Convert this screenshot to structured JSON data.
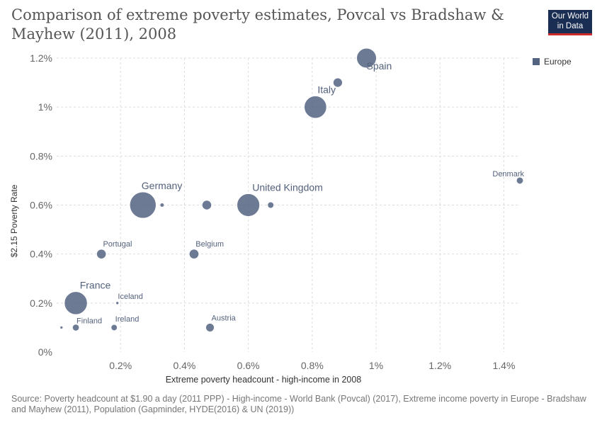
{
  "header": {
    "title": "Comparison of extreme poverty estimates, Povcal vs Bradshaw & Mayhew (2011), 2008",
    "logo_line1": "Our World",
    "logo_line2": "in Data"
  },
  "footer": {
    "source": "Source: Poverty headcount at $1.90 a day (2011 PPP) - High-income - World Bank (Povcal) (2017), Extreme income poverty in Europe - Bradshaw and Mayhew (2011), Population (Gapminder, HYDE(2016) & UN (2019))"
  },
  "colors": {
    "europe": "#536380",
    "grid": "#dddddd",
    "axis_text": "#666666"
  },
  "chart_data": {
    "type": "scatter",
    "xlabel": "Extreme poverty headcount - high-income in 2008",
    "ylabel": "$2.15 Poverty Rate",
    "xlim": [
      0,
      1.45
    ],
    "ylim": [
      0,
      1.2
    ],
    "x_ticks": [
      0.2,
      0.4,
      0.6,
      0.8,
      1.0,
      1.2,
      1.4
    ],
    "x_tick_labels": [
      "0.2%",
      "0.4%",
      "0.6%",
      "0.8%",
      "1%",
      "1.2%",
      "1.4%"
    ],
    "y_ticks": [
      0,
      0.2,
      0.4,
      0.6,
      0.8,
      1.0,
      1.2
    ],
    "y_tick_labels": [
      "0%",
      "0.2%",
      "0.4%",
      "0.6%",
      "0.8%",
      "1%",
      "1.2%"
    ],
    "grid": true,
    "legend": {
      "position": "top-right",
      "entries": [
        "Europe"
      ]
    },
    "series": [
      {
        "name": "Europe",
        "points": [
          {
            "label": "Spain",
            "x": 0.97,
            "y": 1.2,
            "size": 46
          },
          {
            "label": "",
            "x": 0.88,
            "y": 1.1,
            "size": 10
          },
          {
            "label": "Italy",
            "x": 0.81,
            "y": 1.0,
            "size": 59
          },
          {
            "label": "Denmark",
            "x": 1.45,
            "y": 0.7,
            "size": 5.5
          },
          {
            "label": "Germany",
            "x": 0.27,
            "y": 0.6,
            "size": 82
          },
          {
            "label": "",
            "x": 0.33,
            "y": 0.6,
            "size": 2
          },
          {
            "label": "",
            "x": 0.47,
            "y": 0.6,
            "size": 10.5
          },
          {
            "label": "United Kingdom",
            "x": 0.6,
            "y": 0.6,
            "size": 61
          },
          {
            "label": "",
            "x": 0.67,
            "y": 0.6,
            "size": 4.5
          },
          {
            "label": "Portugal",
            "x": 0.14,
            "y": 0.4,
            "size": 10.6
          },
          {
            "label": "Belgium",
            "x": 0.43,
            "y": 0.4,
            "size": 10.8
          },
          {
            "label": "France",
            "x": 0.06,
            "y": 0.2,
            "size": 62
          },
          {
            "label": "Iceland",
            "x": 0.19,
            "y": 0.2,
            "size": 0.3
          },
          {
            "label": "Finland",
            "x": 0.06,
            "y": 0.1,
            "size": 5.3
          },
          {
            "label": "",
            "x": 0.015,
            "y": 0.1,
            "size": 0.5
          },
          {
            "label": "Ireland",
            "x": 0.18,
            "y": 0.1,
            "size": 4.4
          },
          {
            "label": "Austria",
            "x": 0.48,
            "y": 0.1,
            "size": 8.3
          }
        ]
      }
    ]
  }
}
